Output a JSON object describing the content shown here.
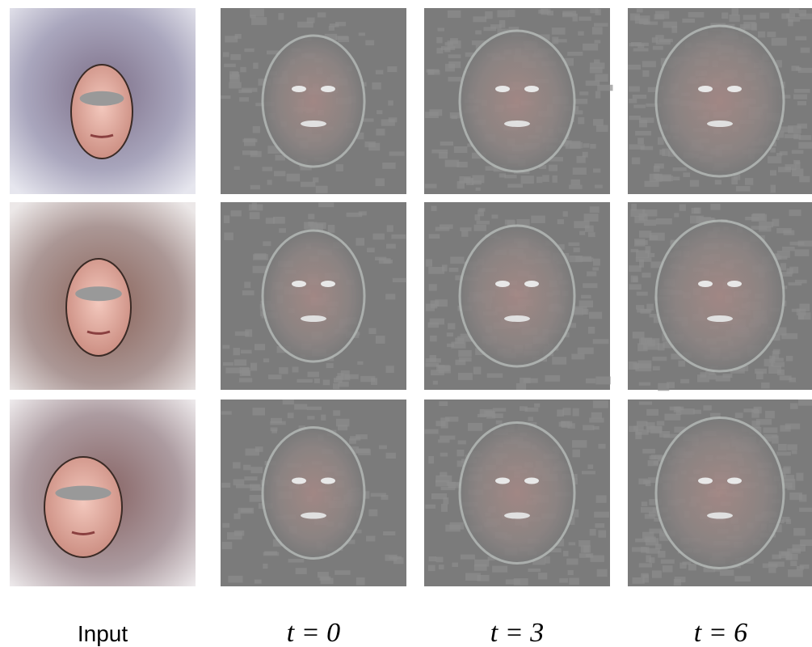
{
  "columns": [
    {
      "label": "Input"
    },
    {
      "label": "t = 0"
    },
    {
      "label": "t = 3"
    },
    {
      "label": "t = 6"
    }
  ]
}
